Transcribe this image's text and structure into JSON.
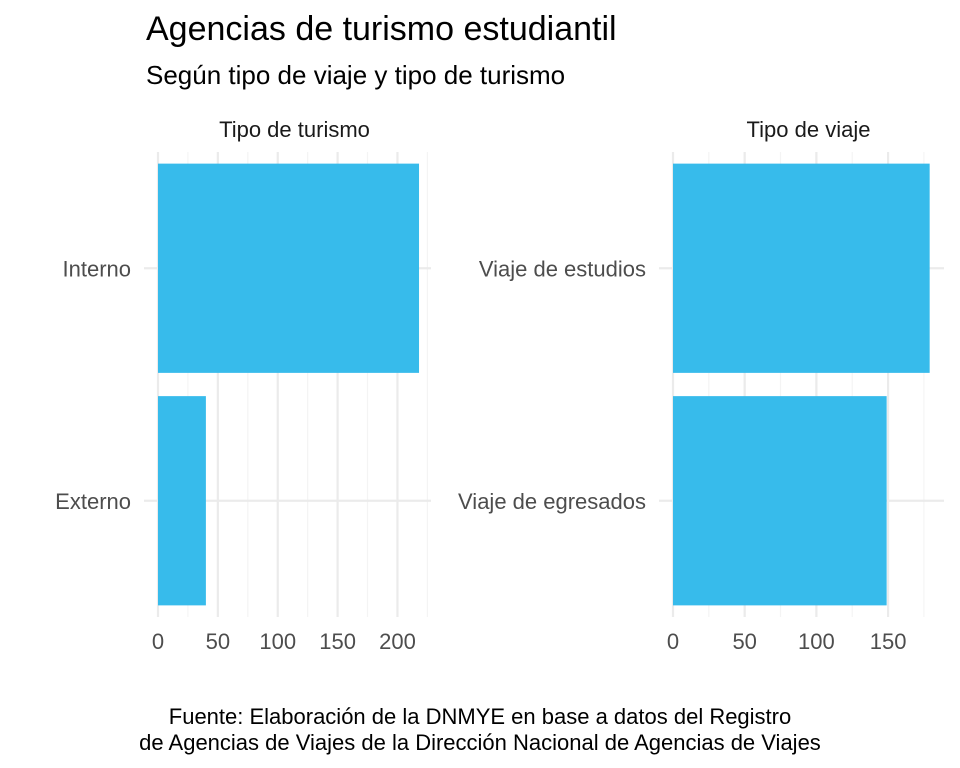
{
  "header": {
    "title": "Agencias de turismo estudiantil",
    "subtitle": "Según tipo de viaje y tipo de turismo"
  },
  "caption": {
    "line1": "Fuente: Elaboración de la DNMYE en base a datos del Registro",
    "line2": "de Agencias de Viajes de la Dirección Nacional de Agencias de Viajes"
  },
  "colors": {
    "bar": "#37BBEB",
    "grid_major": "#ebebeb",
    "grid_minor": "#f4f4f4",
    "axis_text": "#4d4d4d"
  },
  "chart_data": [
    {
      "type": "bar",
      "orientation": "horizontal",
      "facet_label": "Tipo de turismo",
      "categories": [
        "Interno",
        "Externo"
      ],
      "values": [
        218,
        40
      ],
      "xlim": [
        0,
        228
      ],
      "xticks": [
        0,
        50,
        100,
        150,
        200
      ],
      "grid": true
    },
    {
      "type": "bar",
      "orientation": "horizontal",
      "facet_label": "Tipo de viaje",
      "categories": [
        "Viaje de estudios",
        "Viaje de egresados"
      ],
      "values": [
        179,
        149
      ],
      "xlim": [
        0,
        189
      ],
      "xticks": [
        0,
        50,
        100,
        150
      ],
      "grid": true
    }
  ]
}
